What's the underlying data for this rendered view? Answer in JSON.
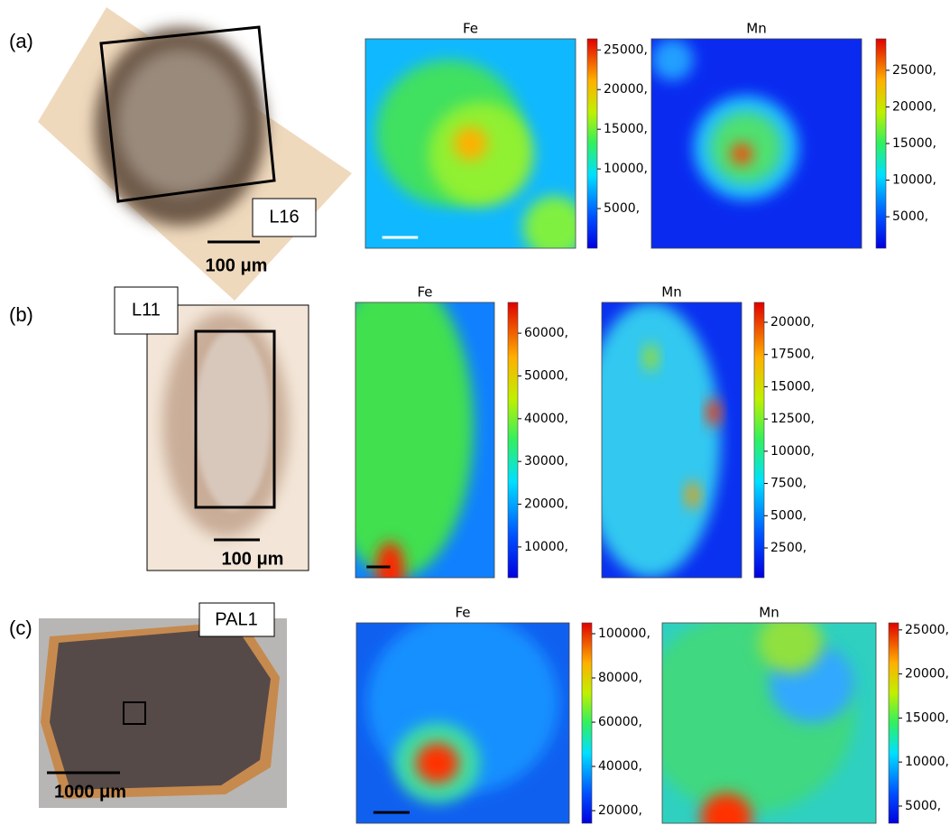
{
  "panels": [
    {
      "label": "(a)",
      "sample": "L16",
      "scale_bar": "100 μm",
      "maps": [
        {
          "title": "Fe",
          "clim": [
            0,
            26400
          ],
          "ticks": [
            {
              "value": 5000,
              "label": "5000,"
            },
            {
              "value": 10000,
              "label": "10000,"
            },
            {
              "value": 15000,
              "label": "15000,"
            },
            {
              "value": 20000,
              "label": "20000,"
            },
            {
              "value": 25000,
              "label": "25000,"
            }
          ]
        },
        {
          "title": "Mn",
          "clim": [
            700,
            29300
          ],
          "ticks": [
            {
              "value": 5000,
              "label": "5000,"
            },
            {
              "value": 10000,
              "label": "10000,"
            },
            {
              "value": 15000,
              "label": "15000,"
            },
            {
              "value": 20000,
              "label": "20000,"
            },
            {
              "value": 25000,
              "label": "25000,"
            }
          ]
        }
      ]
    },
    {
      "label": "(b)",
      "sample": "L11",
      "scale_bar": "100 μm",
      "maps": [
        {
          "title": "Fe",
          "clim": [
            2800,
            67200
          ],
          "ticks": [
            {
              "value": 10000,
              "label": "10000,"
            },
            {
              "value": 20000,
              "label": "20000,"
            },
            {
              "value": 30000,
              "label": "30000,"
            },
            {
              "value": 40000,
              "label": "40000,"
            },
            {
              "value": 50000,
              "label": "50000,"
            },
            {
              "value": 60000,
              "label": "60000,"
            }
          ]
        },
        {
          "title": "Mn",
          "clim": [
            190,
            21540
          ],
          "ticks": [
            {
              "value": 2500,
              "label": "2500,"
            },
            {
              "value": 5000,
              "label": "5000,"
            },
            {
              "value": 7500,
              "label": "7500,"
            },
            {
              "value": 10000,
              "label": "10000,"
            },
            {
              "value": 12500,
              "label": "12500,"
            },
            {
              "value": 15000,
              "label": "15000,"
            },
            {
              "value": 17500,
              "label": "17500,"
            },
            {
              "value": 20000,
              "label": "20000,"
            }
          ]
        }
      ]
    },
    {
      "label": "(c)",
      "sample": "PAL1",
      "scale_bar": "1000 μm",
      "maps": [
        {
          "title": "Fe",
          "clim": [
            14300,
            104900
          ],
          "ticks": [
            {
              "value": 20000,
              "label": "20000,"
            },
            {
              "value": 40000,
              "label": "40000,"
            },
            {
              "value": 60000,
              "label": "60000,"
            },
            {
              "value": 80000,
              "label": "80000,"
            },
            {
              "value": 100000,
              "label": "100000,"
            }
          ]
        },
        {
          "title": "Mn",
          "clim": [
            3050,
            25800
          ],
          "ticks": [
            {
              "value": 5000,
              "label": "5000,"
            },
            {
              "value": 10000,
              "label": "10000,"
            },
            {
              "value": 15000,
              "label": "15000,"
            },
            {
              "value": 20000,
              "label": "20000,"
            },
            {
              "value": 25000,
              "label": "25000,"
            }
          ]
        }
      ]
    }
  ]
}
